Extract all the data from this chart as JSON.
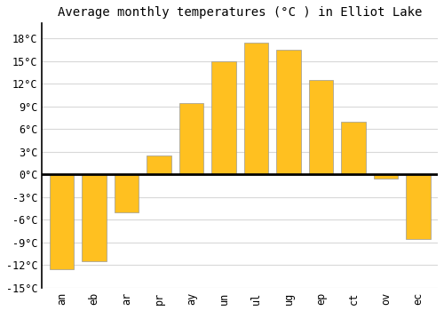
{
  "title": "Average monthly temperatures (°C ) in Elliot Lake",
  "months": [
    "an",
    "eb",
    "ar",
    "pr",
    "ay",
    "un",
    "ul",
    "ug",
    "ep",
    "ct",
    "ov",
    "ec"
  ],
  "values": [
    -12.5,
    -11.5,
    -5.0,
    2.5,
    9.5,
    15.0,
    17.5,
    16.5,
    12.5,
    7.0,
    -0.5,
    -8.5
  ],
  "bar_color": "#FFC020",
  "bar_edge_color": "#999999",
  "background_color": "#ffffff",
  "grid_color": "#d8d8d8",
  "ylim": [
    -15,
    20
  ],
  "yticks": [
    -15,
    -12,
    -9,
    -6,
    -3,
    0,
    3,
    6,
    9,
    12,
    15,
    18
  ],
  "ytick_labels": [
    "-15°C",
    "-12°C",
    "-9°C",
    "-6°C",
    "-3°C",
    "0°C",
    "3°C",
    "6°C",
    "9°C",
    "12°C",
    "15°C",
    "18°C"
  ],
  "title_fontsize": 10,
  "tick_fontsize": 8.5,
  "font_family": "monospace",
  "bar_width": 0.75
}
